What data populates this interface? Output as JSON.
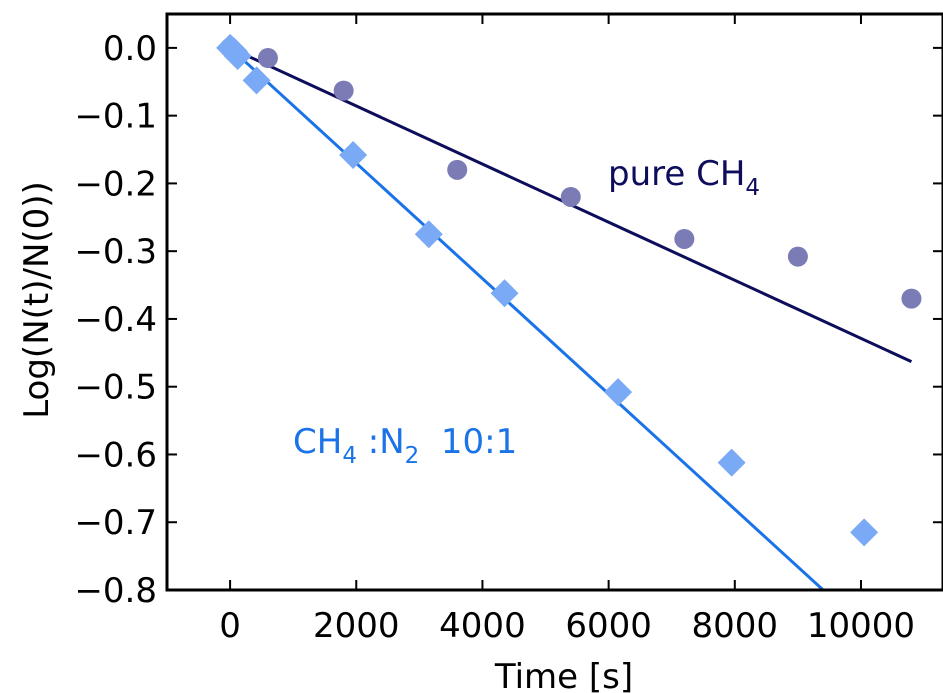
{
  "chart_data": {
    "type": "scatter",
    "xlabel": "Time [s]",
    "ylabel": "Log(N(t)/N(0))",
    "xlim": [
      -1000,
      11300
    ],
    "ylim": [
      -0.8,
      0.05
    ],
    "x_ticks": [
      0,
      2000,
      4000,
      6000,
      8000,
      10000
    ],
    "x_tick_labels": [
      "0",
      "2000",
      "4000",
      "6000",
      "8000",
      "10000"
    ],
    "y_ticks": [
      0.0,
      -0.1,
      -0.2,
      -0.3,
      -0.4,
      -0.5,
      -0.6,
      -0.7,
      -0.8
    ],
    "y_tick_labels": [
      "0.0",
      "−0.1",
      "−0.2",
      "−0.3",
      "−0.4",
      "−0.5",
      "−0.6",
      "−0.7",
      "−0.8"
    ],
    "grid": false,
    "series": [
      {
        "marker": "circle",
        "color": "#7b7bb5",
        "x": [
          0,
          600,
          1800,
          3600,
          5400,
          7200,
          9000,
          10800
        ],
        "y": [
          0.0,
          -0.015,
          -0.063,
          -0.18,
          -0.22,
          -0.282,
          -0.308,
          -0.37
        ],
        "fit": {
          "x": [
            0,
            10800
          ],
          "y": [
            0.0,
            -0.463
          ],
          "color": "#0d0d5c"
        }
      },
      {
        "marker": "diamond",
        "color": "#7aaaf5",
        "x": [
          0,
          60,
          120,
          420,
          1950,
          3150,
          4350,
          6150,
          7950,
          10050
        ],
        "y": [
          0.0,
          -0.005,
          -0.012,
          -0.048,
          -0.158,
          -0.275,
          -0.362,
          -0.508,
          -0.612,
          -0.715
        ],
        "fit": {
          "x": [
            0,
            9400
          ],
          "y": [
            0.0,
            -0.8
          ],
          "color": "#1a73e8"
        }
      }
    ],
    "annotations": [
      {
        "text": "pure CH",
        "sub": "4",
        "tail": "",
        "color": "#0d0d5c"
      },
      {
        "text": "CH",
        "sub": "4",
        "text2": " :N",
        "sub2": "2",
        "tail": "  10:1",
        "color": "#1a73e8"
      }
    ]
  }
}
